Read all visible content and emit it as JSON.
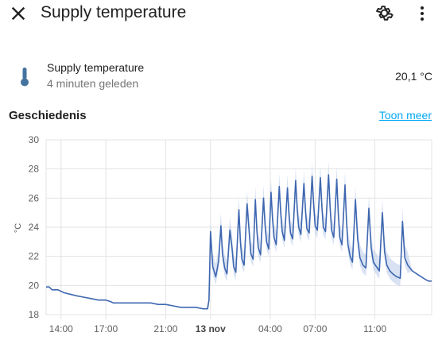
{
  "header": {
    "title": "Supply temperature",
    "close_icon": "close-icon",
    "settings_icon": "gear-icon",
    "more_icon": "more-vertical-icon"
  },
  "entity": {
    "icon": "thermometer-icon",
    "name": "Supply temperature",
    "last_changed": "4 minuten geleden",
    "state": "20,1 °C",
    "icon_color": "#44739e"
  },
  "history": {
    "title": "Geschiedenis",
    "show_more": "Toon meer",
    "link_color": "#03a9f4"
  },
  "chart_data": {
    "type": "line",
    "title": "",
    "xlabel": "",
    "ylabel": "°C",
    "ylim": [
      18,
      30
    ],
    "y_ticks": [
      "18",
      "20",
      "22",
      "24",
      "26",
      "28",
      "30"
    ],
    "x_ticks": [
      {
        "label": "14:00",
        "hour": 14,
        "bold": false
      },
      {
        "label": "17:00",
        "hour": 17,
        "bold": false
      },
      {
        "label": "21:00",
        "hour": 21,
        "bold": false
      },
      {
        "label": "13 nov",
        "hour": 24,
        "bold": true
      },
      {
        "label": "04:00",
        "hour": 28,
        "bold": false
      },
      {
        "label": "07:00",
        "hour": 31,
        "bold": false
      },
      {
        "label": "11:00",
        "hour": 35,
        "bold": false
      }
    ],
    "grid": true,
    "series": [
      {
        "color": "#3e67b0",
        "band_color": "#b9cbea",
        "points": [
          [
            13.0,
            19.9
          ],
          [
            13.2,
            19.9
          ],
          [
            13.4,
            19.7
          ],
          [
            13.8,
            19.7
          ],
          [
            14.2,
            19.5
          ],
          [
            14.6,
            19.4
          ],
          [
            15.0,
            19.3
          ],
          [
            15.5,
            19.2
          ],
          [
            16.0,
            19.1
          ],
          [
            16.5,
            19.0
          ],
          [
            17.0,
            19.0
          ],
          [
            17.3,
            18.9
          ],
          [
            17.5,
            18.8
          ],
          [
            18.0,
            18.8
          ],
          [
            19.0,
            18.8
          ],
          [
            20.0,
            18.8
          ],
          [
            20.5,
            18.7
          ],
          [
            21.0,
            18.7
          ],
          [
            21.5,
            18.6
          ],
          [
            22.0,
            18.5
          ],
          [
            23.0,
            18.5
          ],
          [
            23.5,
            18.4
          ],
          [
            23.8,
            18.4
          ],
          [
            23.9,
            19.0
          ],
          [
            24.0,
            23.7
          ],
          [
            24.15,
            21.3
          ],
          [
            24.35,
            20.6
          ],
          [
            24.55,
            21.7
          ],
          [
            24.7,
            24.1
          ],
          [
            24.8,
            22.2
          ],
          [
            24.95,
            21.2
          ],
          [
            25.1,
            20.8
          ],
          [
            25.3,
            23.8
          ],
          [
            25.45,
            22.5
          ],
          [
            25.55,
            21.3
          ],
          [
            25.7,
            20.9
          ],
          [
            25.9,
            25.2
          ],
          [
            26.0,
            23.0
          ],
          [
            26.1,
            21.8
          ],
          [
            26.25,
            21.4
          ],
          [
            26.45,
            25.6
          ],
          [
            26.6,
            23.5
          ],
          [
            26.7,
            22.2
          ],
          [
            26.85,
            21.8
          ],
          [
            27.0,
            25.9
          ],
          [
            27.1,
            23.8
          ],
          [
            27.2,
            22.6
          ],
          [
            27.35,
            22.1
          ],
          [
            27.55,
            26.0
          ],
          [
            27.65,
            24.2
          ],
          [
            27.75,
            23.0
          ],
          [
            27.9,
            22.5
          ],
          [
            28.05,
            26.4
          ],
          [
            28.15,
            24.6
          ],
          [
            28.25,
            23.3
          ],
          [
            28.4,
            22.8
          ],
          [
            28.6,
            26.8
          ],
          [
            28.7,
            25.0
          ],
          [
            28.8,
            23.7
          ],
          [
            28.95,
            23.1
          ],
          [
            29.15,
            26.7
          ],
          [
            29.25,
            24.9
          ],
          [
            29.35,
            23.6
          ],
          [
            29.5,
            23.2
          ],
          [
            29.7,
            27.2
          ],
          [
            29.8,
            25.3
          ],
          [
            29.9,
            24.0
          ],
          [
            30.05,
            23.5
          ],
          [
            30.25,
            27.0
          ],
          [
            30.35,
            25.2
          ],
          [
            30.45,
            23.9
          ],
          [
            30.6,
            23.6
          ],
          [
            30.8,
            27.5
          ],
          [
            30.9,
            25.6
          ],
          [
            31.0,
            24.1
          ],
          [
            31.15,
            23.8
          ],
          [
            31.35,
            27.4
          ],
          [
            31.45,
            25.5
          ],
          [
            31.55,
            24.0
          ],
          [
            31.7,
            23.7
          ],
          [
            31.9,
            27.6
          ],
          [
            32.0,
            25.4
          ],
          [
            32.1,
            23.8
          ],
          [
            32.25,
            23.3
          ],
          [
            32.45,
            27.3
          ],
          [
            32.55,
            25.0
          ],
          [
            32.65,
            23.3
          ],
          [
            32.8,
            22.8
          ],
          [
            33.0,
            26.9
          ],
          [
            33.1,
            24.5
          ],
          [
            33.2,
            22.8
          ],
          [
            33.35,
            22.0
          ],
          [
            33.5,
            21.6
          ],
          [
            33.7,
            25.9
          ],
          [
            33.85,
            23.2
          ],
          [
            34.0,
            21.9
          ],
          [
            34.2,
            21.4
          ],
          [
            34.4,
            21.2
          ],
          [
            34.6,
            25.3
          ],
          [
            34.75,
            22.6
          ],
          [
            34.9,
            21.6
          ],
          [
            35.1,
            21.3
          ],
          [
            35.3,
            21.0
          ],
          [
            35.5,
            25.0
          ],
          [
            35.65,
            22.3
          ],
          [
            35.8,
            21.4
          ],
          [
            36.0,
            21.0
          ],
          [
            36.2,
            20.8
          ],
          [
            36.45,
            20.6
          ],
          [
            36.7,
            20.5
          ],
          [
            36.85,
            24.4
          ],
          [
            37.0,
            21.9
          ],
          [
            37.2,
            21.4
          ],
          [
            37.5,
            21.0
          ],
          [
            37.8,
            20.8
          ],
          [
            38.1,
            20.6
          ],
          [
            38.4,
            20.4
          ],
          [
            38.6,
            20.3
          ],
          [
            38.8,
            20.3
          ]
        ]
      }
    ]
  }
}
